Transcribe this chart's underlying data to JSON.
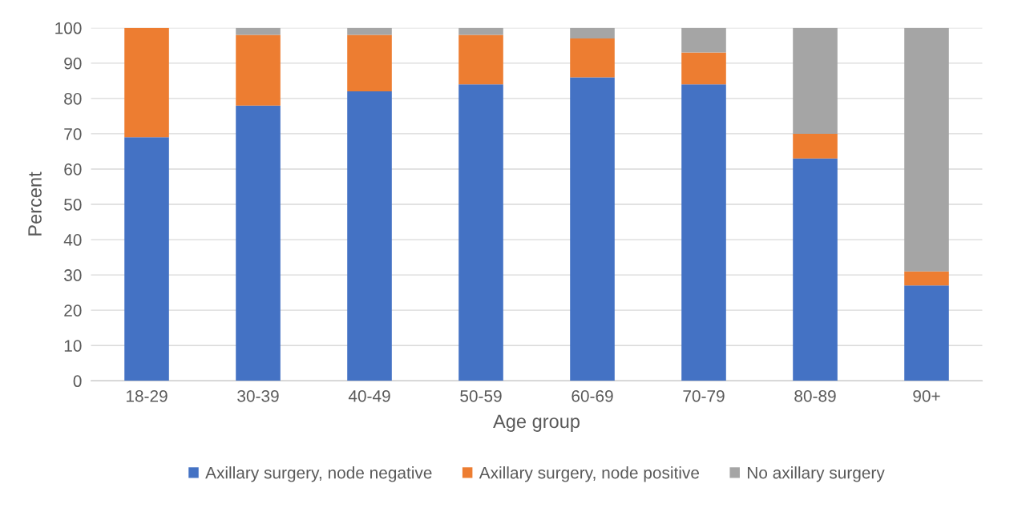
{
  "chart_data": {
    "type": "bar",
    "stacked": true,
    "xlabel": "Age group",
    "ylabel": "Percent",
    "categories": [
      "18-29",
      "30-39",
      "40-49",
      "50-59",
      "60-69",
      "70-79",
      "80-89",
      "90+"
    ],
    "series": [
      {
        "name": "Axillary surgery, node negative",
        "color": "#4472c4",
        "values": [
          69,
          78,
          82,
          84,
          86,
          84,
          63,
          27
        ]
      },
      {
        "name": "Axillary surgery, node positive",
        "color": "#ed7d31",
        "values": [
          31,
          20,
          16,
          14,
          11,
          9,
          7,
          4
        ]
      },
      {
        "name": "No axillary surgery",
        "color": "#a5a5a5",
        "values": [
          0,
          2,
          2,
          2,
          3,
          7,
          30,
          69
        ]
      }
    ],
    "ylim": [
      0,
      100
    ],
    "yticks": [
      0,
      10,
      20,
      30,
      40,
      50,
      60,
      70,
      80,
      90,
      100
    ],
    "grid": "y",
    "legend": "bottom"
  }
}
